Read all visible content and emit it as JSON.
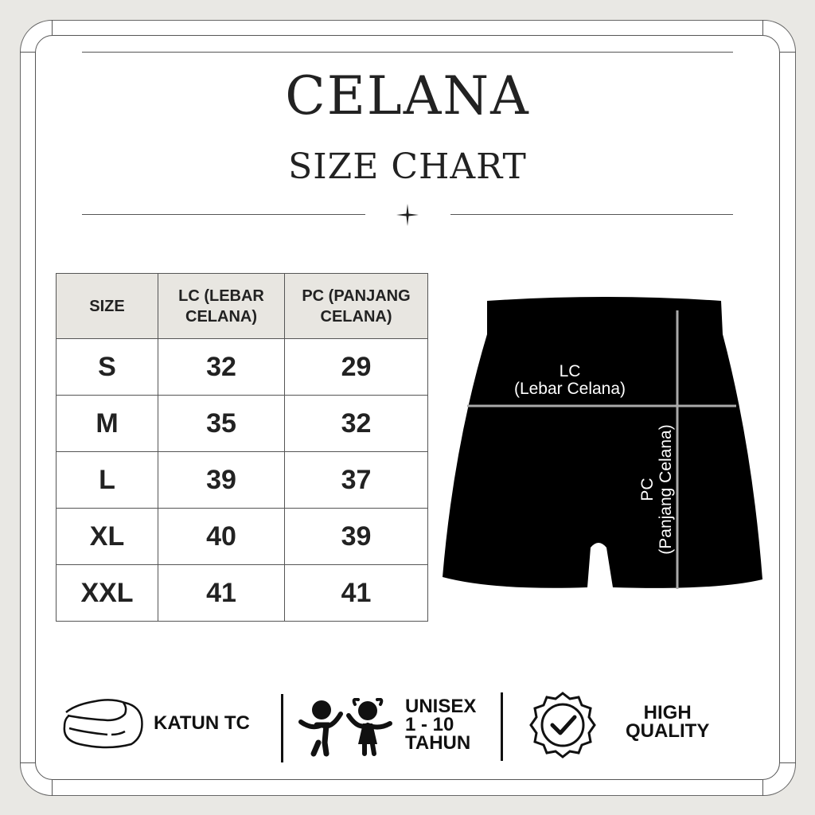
{
  "title": "CELANA",
  "subtitle": "SIZE CHART",
  "table": {
    "headers": [
      "SIZE",
      "LC (LEBAR\nCELANA)",
      "PC (PANJANG\nCELANA)"
    ],
    "rows": [
      [
        "S",
        "32",
        "29"
      ],
      [
        "M",
        "35",
        "32"
      ],
      [
        "L",
        "39",
        "37"
      ],
      [
        "XL",
        "40",
        "39"
      ],
      [
        "XXL",
        "41",
        "41"
      ]
    ]
  },
  "diagram": {
    "lc_label": "LC",
    "lc_sub": "(Lebar Celana)",
    "pc_label": "PC",
    "pc_sub": "(Panjang Celana)"
  },
  "features": [
    {
      "icon": "folded-fabric-icon",
      "label": "KATUN TC"
    },
    {
      "icon": "kids-icon",
      "label": "UNISEX\n1 - 10\nTAHUN"
    },
    {
      "icon": "quality-badge-icon",
      "label": "HIGH\nQUALITY"
    }
  ]
}
